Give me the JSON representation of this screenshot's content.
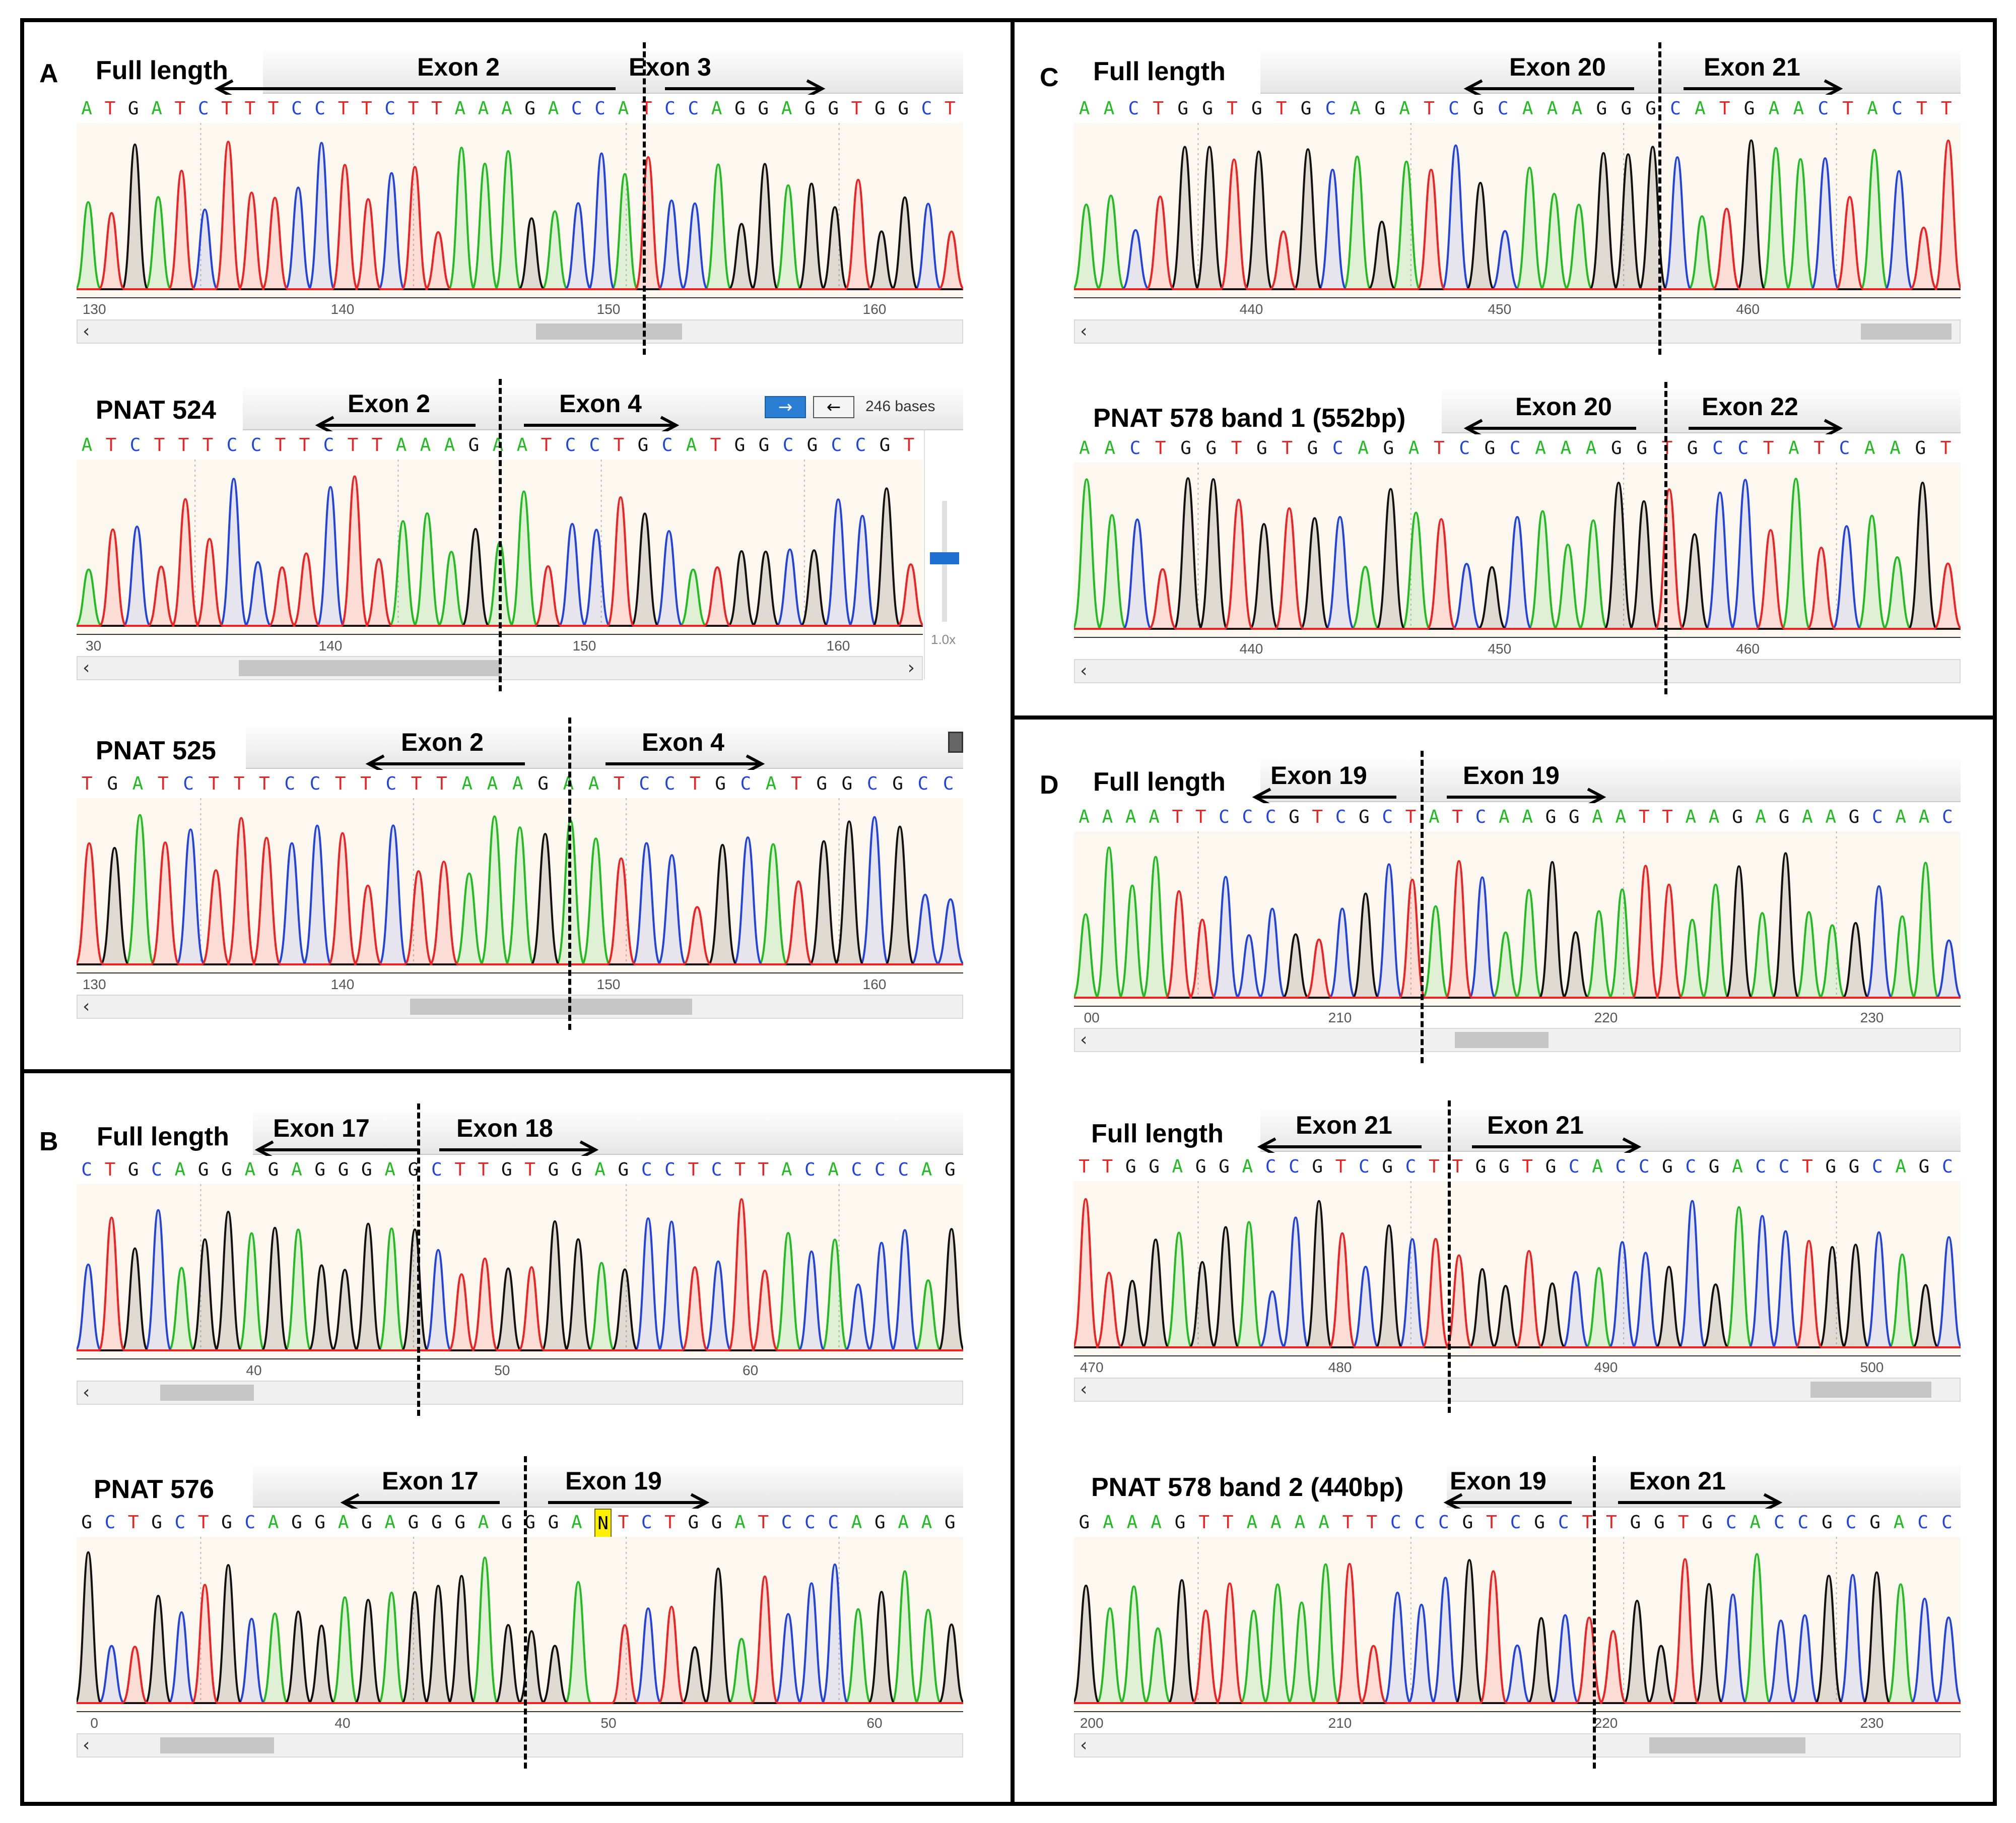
{
  "panels": [
    {
      "label": "A",
      "traces": [
        {
          "title": "Full length",
          "exons": [
            "Exon 2",
            "Exon 3"
          ],
          "seq": "ATGATCTTTCCTTCTTAAAGACCATCCAGGAGGTGGCT",
          "ticks": [
            "130",
            "140",
            "150",
            "160"
          ]
        },
        {
          "title": "PNAT 524",
          "exons": [
            "Exon 2",
            "Exon 4"
          ],
          "seq": "ATCTTTCCTTCTTAAAGAATCCTGCATGGCGCCGT",
          "ticks": [
            "30",
            "140",
            "150",
            "160"
          ],
          "bases": "246 bases",
          "zoom": "1.0x"
        },
        {
          "title": "PNAT 525",
          "exons": [
            "Exon 2",
            "Exon 4"
          ],
          "seq": "TGATCTTTCCTTCTTAAAGAATCCTGCATGGCGCC",
          "ticks": [
            "130",
            "140",
            "150",
            "160"
          ]
        }
      ]
    },
    {
      "label": "B",
      "traces": [
        {
          "title": "Full length",
          "exons": [
            "Exon 17",
            "Exon 18"
          ],
          "seq": "CTGCAGGAGAGGGAGCTTGTGGAGCCTCTTACACCCAG",
          "ticks": [
            "40",
            "50",
            "60"
          ]
        },
        {
          "title": "PNAT 576",
          "exons": [
            "Exon 17",
            "Exon 19"
          ],
          "seq": "GCTGCTGCAGGAGAGGGAGGGANTCTGGATCCCAGAAG",
          "ticks": [
            "0",
            "40",
            "50",
            "60"
          ]
        }
      ]
    },
    {
      "label": "C",
      "traces": [
        {
          "title": "Full length",
          "exons": [
            "Exon 20",
            "Exon 21"
          ],
          "seq": "AACTGGTGTGCAGATCGCAAAGGGCATGAACTACTT",
          "ticks": [
            "440",
            "450",
            "460"
          ]
        },
        {
          "title": "PNAT 578 band 1 (552bp)",
          "exons": [
            "Exon 20",
            "Exon 22"
          ],
          "seq": "AACTGGTGTGCAGATCGCAAAGGTGCCTATCAAGT",
          "ticks": [
            "440",
            "450",
            "460"
          ]
        }
      ]
    },
    {
      "label": "D",
      "traces": [
        {
          "title": "Full length",
          "exons": [
            "Exon 19",
            "Exon 19"
          ],
          "seq": "AAAATTCCCGTCGCTATCAAGGAATTAAGAGAAGCAAC",
          "ticks": [
            "00",
            "210",
            "220",
            "230"
          ]
        },
        {
          "title": "Full length",
          "exons": [
            "Exon 21",
            "Exon 21"
          ],
          "seq": "TTGGAGGACCGTCGCTTGGTGCACCGCGACCTGGCAGC",
          "ticks": [
            "470",
            "480",
            "490",
            "500"
          ]
        },
        {
          "title": "PNAT 578 band 2 (440bp)",
          "exons": [
            "Exon 19",
            "Exon 21"
          ],
          "seq": "GAAAGTTAAAATTCCCGTCGCTTGGTGCACCGCGACC",
          "ticks": [
            "200",
            "210",
            "220",
            "230"
          ]
        }
      ]
    }
  ],
  "colors": {
    "A": "#22bb22",
    "C": "#2244dd",
    "G": "#111111",
    "T": "#ee2222"
  }
}
